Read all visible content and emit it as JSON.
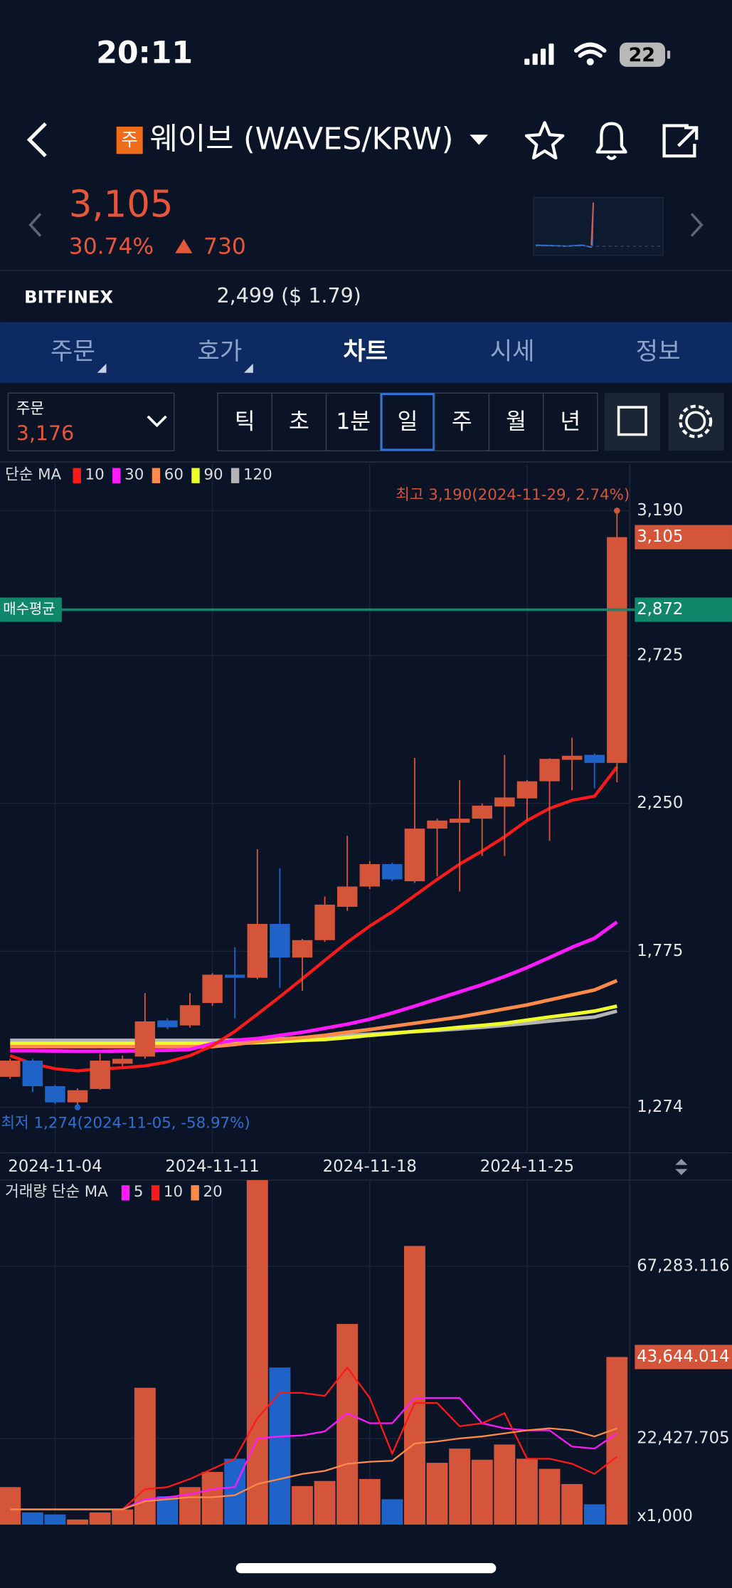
{
  "status_bar": {
    "time": "20:11",
    "battery": "22"
  },
  "header": {
    "badge": "주",
    "title": "웨이브 (WAVES/KRW)"
  },
  "price": {
    "current": "3,105",
    "change_rate": "30.74%",
    "change": "730"
  },
  "exchange": {
    "name": "BITFINEX",
    "price": "2,499 ($ 1.79)"
  },
  "tabs": {
    "items": [
      "주문",
      "호가",
      "차트",
      "시세",
      "정보"
    ],
    "active": 2
  },
  "toolbar": {
    "order_label": "주문",
    "order_price": "3,176",
    "periods": [
      "틱",
      "초",
      "1분",
      "일",
      "주",
      "월",
      "년"
    ],
    "active": 3
  },
  "chart_data": [
    {
      "type": "candlestick",
      "x": [
        "2024-11-02",
        "2024-11-03",
        "2024-11-04",
        "2024-11-05",
        "2024-11-06",
        "2024-11-07",
        "2024-11-08",
        "2024-11-09",
        "2024-11-10",
        "2024-11-11",
        "2024-11-12",
        "2024-11-13",
        "2024-11-14",
        "2024-11-15",
        "2024-11-16",
        "2024-11-17",
        "2024-11-18",
        "2024-11-19",
        "2024-11-20",
        "2024-11-21",
        "2024-11-22",
        "2024-11-23",
        "2024-11-24",
        "2024-11-25",
        "2024-11-26",
        "2024-11-27",
        "2024-11-28",
        "2024-11-29"
      ],
      "open": [
        1372,
        1424,
        1342,
        1290,
        1333,
        1414,
        1437,
        1553,
        1537,
        1609,
        1700,
        1690,
        1863,
        1755,
        1811,
        1918,
        1983,
        2055,
        2000,
        2169,
        2188,
        2201,
        2240,
        2266,
        2321,
        2390,
        2406,
        2380
      ],
      "high": [
        1430,
        1430,
        1345,
        1335,
        1446,
        1440,
        1641,
        1560,
        1641,
        1705,
        1788,
        2103,
        2042,
        1815,
        1951,
        2146,
        2065,
        2060,
        2396,
        2201,
        2325,
        2250,
        2406,
        2325,
        2395,
        2461,
        2410,
        3190
      ],
      "low": [
        1365,
        1323,
        1285,
        1274,
        1330,
        1405,
        1430,
        1525,
        1530,
        1600,
        1560,
        1685,
        1658,
        1648,
        1805,
        1905,
        1975,
        2000,
        1995,
        2016,
        1967,
        2081,
        2081,
        2195,
        2130,
        2292,
        2298,
        2318
      ],
      "close": [
        1424,
        1342,
        1290,
        1329,
        1424,
        1430,
        1550,
        1531,
        1602,
        1700,
        1690,
        1863,
        1755,
        1811,
        1925,
        1983,
        2055,
        2006,
        2169,
        2195,
        2201,
        2243,
        2269,
        2321,
        2393,
        2403,
        2380,
        3105
      ],
      "up_color": "#d4553a",
      "down_color": "#1f63c9",
      "xticks": [
        "2024-11-04",
        "2024-11-11",
        "2024-11-18",
        "2024-11-25"
      ],
      "ylim": [
        1128,
        3340
      ],
      "yticks": [
        {
          "value": 3190,
          "label": "3,190"
        },
        {
          "value": 2725,
          "label": "2,725"
        },
        {
          "value": 2250,
          "label": "2,250"
        },
        {
          "value": 1775,
          "label": "1,775"
        },
        {
          "value": 1274,
          "label": "1,274"
        }
      ],
      "grid": true,
      "legend_title": "단순 MA",
      "series": [
        {
          "name": "10",
          "color": "#ff1a1a",
          "values": [
            1440,
            1414,
            1398,
            1391,
            1398,
            1401,
            1407,
            1420,
            1440,
            1472,
            1518,
            1573,
            1629,
            1687,
            1746,
            1804,
            1856,
            1902,
            1954,
            2006,
            2055,
            2097,
            2143,
            2195,
            2234,
            2260,
            2273,
            2367
          ]
        },
        {
          "name": "30",
          "color": "#ff1aff",
          "values": [
            1456,
            1456,
            1455,
            1454,
            1454,
            1455,
            1456,
            1457,
            1460,
            1479,
            1489,
            1495,
            1505,
            1515,
            1528,
            1541,
            1557,
            1577,
            1599,
            1622,
            1645,
            1668,
            1694,
            1723,
            1755,
            1788,
            1817,
            1869
          ]
        },
        {
          "name": "60",
          "color": "#ff8a4a",
          "values": [
            1469,
            1469,
            1469,
            1469,
            1469,
            1469,
            1469,
            1469,
            1469,
            1469,
            1476,
            1485,
            1492,
            1498,
            1505,
            1515,
            1524,
            1534,
            1544,
            1554,
            1564,
            1577,
            1590,
            1603,
            1619,
            1635,
            1651,
            1681
          ]
        },
        {
          "name": "90",
          "color": "#eeff2a",
          "values": [
            1479,
            1479,
            1479,
            1479,
            1479,
            1479,
            1479,
            1479,
            1479,
            1479,
            1479,
            1482,
            1485,
            1489,
            1492,
            1498,
            1505,
            1511,
            1518,
            1524,
            1531,
            1537,
            1544,
            1554,
            1564,
            1573,
            1583,
            1599
          ]
        },
        {
          "name": "120",
          "color": "#b4b4b4",
          "values": [
            1489,
            1489,
            1489,
            1489,
            1489,
            1489,
            1489,
            1489,
            1489,
            1489,
            1490,
            1492,
            1494,
            1497,
            1500,
            1505,
            1509,
            1513,
            1517,
            1521,
            1526,
            1531,
            1537,
            1544,
            1551,
            1558,
            1564,
            1583
          ]
        }
      ],
      "high_annotation": "최고 3,190(2024-11-29, 2.74%)",
      "low_annotation": "최저 1,274(2024-11-05, -58.97%)",
      "last_price": {
        "value": 3105,
        "label": "3,105"
      },
      "average_buy": {
        "name": "매수평균",
        "value": 2872,
        "label": "2,872",
        "color": "#10876a"
      }
    },
    {
      "type": "bar",
      "values": [
        9764,
        3167,
        2639,
        1320,
        3167,
        3959,
        35627,
        7389,
        9764,
        13723,
        17154,
        89700,
        40905,
        10028,
        11348,
        52252,
        11876,
        6598,
        72573,
        16098,
        19793,
        16890,
        20848,
        17154,
        14515,
        10556,
        5278,
        43644.014
      ],
      "ylim": [
        0,
        89700
      ],
      "yticks": [
        {
          "value": 67283.116,
          "label": "67,283.116"
        },
        {
          "value": 22427.705,
          "label": "22,427.705"
        }
      ],
      "unit_label": "x1,000",
      "legend_title": "거래량 단순 MA",
      "last_value": {
        "value": 43644.014,
        "label": "43,644.014"
      },
      "series": [
        {
          "name": "5",
          "color": "#ff1aff",
          "values": [
            3959,
            3959,
            3959,
            3959,
            3959,
            3959,
            6598,
            7125,
            7917,
            9237,
            9764,
            22432,
            22959,
            23223,
            24279,
            29029,
            26390,
            26390,
            32988,
            32988,
            32988,
            26390,
            25071,
            24543,
            24543,
            20320,
            19793,
            23751
          ]
        },
        {
          "name": "10",
          "color": "#ff1a1a",
          "values": [
            3959,
            3959,
            3959,
            3959,
            3959,
            3959,
            9237,
            9764,
            11876,
            14515,
            17154,
            27710,
            34307,
            34307,
            33515,
            40905,
            32988,
            18473,
            31668,
            31668,
            25598,
            26390,
            29029,
            17154,
            17154,
            15834,
            13195,
            17681
          ]
        },
        {
          "name": "20",
          "color": "#ff8a4a",
          "values": [
            3959,
            3959,
            3959,
            3959,
            3959,
            3959,
            6070,
            6598,
            7125,
            7125,
            7653,
            10556,
            11876,
            13195,
            13987,
            15834,
            16362,
            16626,
            21112,
            21640,
            22432,
            22959,
            23751,
            24543,
            25071,
            24543,
            22959,
            25071
          ]
        }
      ]
    }
  ]
}
